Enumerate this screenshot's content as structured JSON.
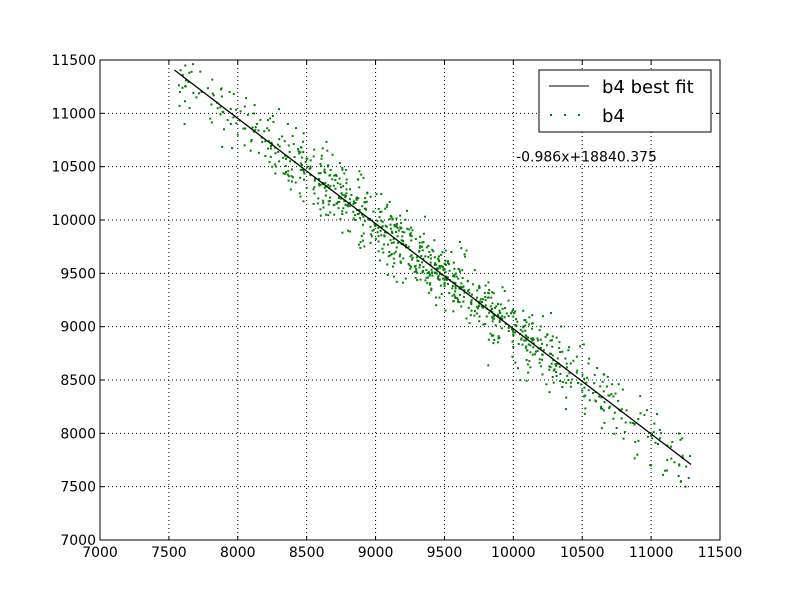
{
  "chart_data": {
    "type": "scatter",
    "xlim": [
      7000,
      11500
    ],
    "ylim": [
      7000,
      11500
    ],
    "x_ticks": [
      7000,
      7500,
      8000,
      8500,
      9000,
      9500,
      10000,
      10500,
      11000,
      11500
    ],
    "y_ticks": [
      7000,
      7500,
      8000,
      8500,
      9000,
      9500,
      10000,
      10500,
      11000,
      11500
    ],
    "grid": true,
    "legend_position": "top-right",
    "series": [
      {
        "name": "b4 best fit",
        "kind": "line",
        "color": "#000000",
        "x": [
          7540,
          11290
        ],
        "y": [
          11406,
          7708
        ]
      },
      {
        "name": "b4",
        "kind": "scatter",
        "color": "#008000",
        "point_count": 1000,
        "trend_slope": -0.986,
        "trend_intercept": 18840.375,
        "x_range": [
          7540,
          11290
        ],
        "residual_spread": 150,
        "sample_points": [
          [
            7580,
            11200
          ],
          [
            7650,
            11050
          ],
          [
            7700,
            11150
          ],
          [
            7800,
            10950
          ],
          [
            7850,
            11100
          ],
          [
            7900,
            10850
          ],
          [
            7950,
            10900
          ],
          [
            8000,
            10800
          ],
          [
            8050,
            10700
          ],
          [
            8100,
            10750
          ],
          [
            8200,
            10600
          ],
          [
            8250,
            10500
          ],
          [
            8300,
            10550
          ],
          [
            8350,
            10450
          ],
          [
            8400,
            10400
          ],
          [
            8450,
            10250
          ],
          [
            8500,
            10300
          ],
          [
            8550,
            10150
          ],
          [
            8600,
            10100
          ],
          [
            8650,
            10650
          ],
          [
            8700,
            10050
          ],
          [
            8750,
            10200
          ],
          [
            8800,
            9900
          ],
          [
            8850,
            10000
          ],
          [
            8900,
            9850
          ],
          [
            9000,
            9950
          ],
          [
            9100,
            9700
          ],
          [
            9200,
            9800
          ],
          [
            9300,
            9650
          ],
          [
            9400,
            9600
          ],
          [
            9450,
            9550
          ],
          [
            9500,
            9400
          ],
          [
            9550,
            9700
          ],
          [
            9600,
            9450
          ],
          [
            9700,
            9300
          ],
          [
            9800,
            9200
          ],
          [
            9850,
            9050
          ],
          [
            9900,
            9150
          ],
          [
            10000,
            8950
          ],
          [
            10050,
            8500
          ],
          [
            10100,
            8900
          ],
          [
            10200,
            8800
          ],
          [
            10300,
            8600
          ],
          [
            10400,
            8500
          ],
          [
            10500,
            8400
          ],
          [
            10550,
            8700
          ],
          [
            10600,
            8300
          ],
          [
            10700,
            8250
          ],
          [
            10750,
            8050
          ],
          [
            10800,
            7950
          ],
          [
            10850,
            8100
          ],
          [
            10900,
            7800
          ],
          [
            11000,
            7700
          ],
          [
            11050,
            7900
          ],
          [
            11100,
            7650
          ],
          [
            11200,
            7600
          ],
          [
            11250,
            7500
          ]
        ]
      }
    ],
    "annotations": [
      {
        "text": "-0.986x+18840.375",
        "x": 10020,
        "y": 10550
      }
    ]
  }
}
